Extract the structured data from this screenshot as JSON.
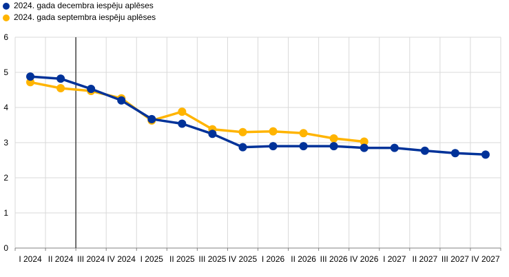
{
  "chart_data": {
    "type": "line",
    "categories": [
      "I 2024",
      "II 2024",
      "III 2024",
      "IV 2024",
      "I 2025",
      "II 2025",
      "III 2025",
      "IV 2025",
      "I 2026",
      "II 2026",
      "III 2026",
      "IV 2026",
      "I 2027",
      "II 2027",
      "III 2027",
      "IV 2027"
    ],
    "series": [
      {
        "name": "2024. gada decembra iespēju aplēses",
        "color": "#003299",
        "values": [
          4.88,
          4.82,
          4.53,
          4.2,
          3.67,
          3.54,
          3.25,
          2.87,
          2.9,
          2.9,
          2.9,
          2.85,
          2.85,
          2.77,
          2.7,
          2.66
        ]
      },
      {
        "name": "2024. gada septembra iespēju aplēses",
        "color": "#FFB400",
        "values": [
          4.72,
          4.55,
          4.47,
          4.26,
          3.63,
          3.88,
          3.38,
          3.3,
          3.32,
          3.27,
          3.12,
          3.03,
          null,
          null,
          null,
          null
        ]
      }
    ],
    "ylim": [
      0,
      6
    ],
    "yticks": [
      0,
      1,
      2,
      3,
      4,
      5,
      6
    ],
    "grid": true,
    "vertical_marker_category": "II 2024",
    "legend_position": "top-left"
  }
}
